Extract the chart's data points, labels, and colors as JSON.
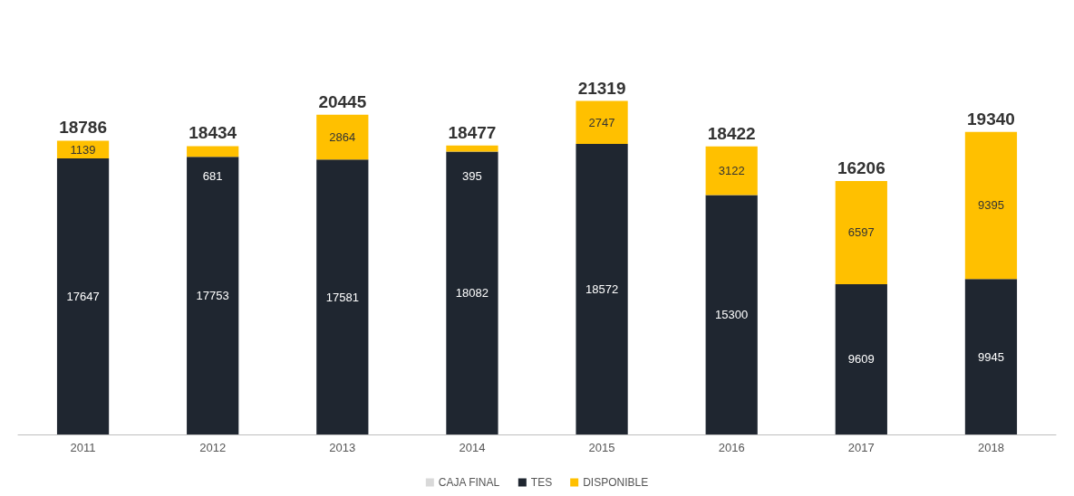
{
  "chart_data": {
    "type": "bar",
    "stacked": true,
    "categories": [
      "2011",
      "2012",
      "2013",
      "2014",
      "2015",
      "2016",
      "2017",
      "2018"
    ],
    "series": [
      {
        "name": "CAJA FINAL",
        "color": "#d9d9d9",
        "values": [
          null,
          null,
          null,
          null,
          null,
          null,
          null,
          null
        ]
      },
      {
        "name": "TES",
        "color": "#1f2630",
        "values": [
          17647,
          17753,
          17581,
          18082,
          18572,
          15300,
          9609,
          9945
        ]
      },
      {
        "name": "DISPONIBLE",
        "color": "#ffc000",
        "values": [
          1139,
          681,
          2864,
          395,
          2747,
          3122,
          6597,
          9395
        ]
      }
    ],
    "totals": [
      "18786",
      "18434",
      "20445",
      "18477",
      "21319",
      "18422",
      "16206",
      "19340"
    ],
    "data_labels": true,
    "legend": "bottom"
  }
}
